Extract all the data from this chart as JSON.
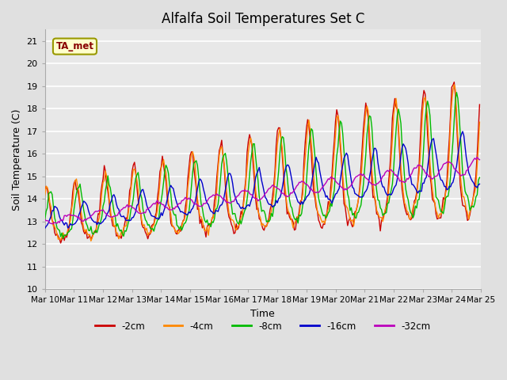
{
  "title": "Alfalfa Soil Temperatures Set C",
  "xlabel": "Time",
  "ylabel": "Soil Temperature (C)",
  "ylim": [
    10.0,
    21.5
  ],
  "yticks": [
    10.0,
    11.0,
    12.0,
    13.0,
    14.0,
    15.0,
    16.0,
    17.0,
    18.0,
    19.0,
    20.0,
    21.0
  ],
  "bg_color": "#e0e0e0",
  "plot_bg_color": "#e8e8e8",
  "legend_labels": [
    "-2cm",
    "-4cm",
    "-8cm",
    "-16cm",
    "-32cm"
  ],
  "legend_colors": [
    "#cc0000",
    "#ff8800",
    "#00bb00",
    "#0000cc",
    "#bb00bb"
  ],
  "ta_met_box_color": "#ffffcc",
  "ta_met_text_color": "#880000",
  "ta_met_border_color": "#999900",
  "n_days": 15,
  "start_day": 10,
  "pts_per_day": 24
}
